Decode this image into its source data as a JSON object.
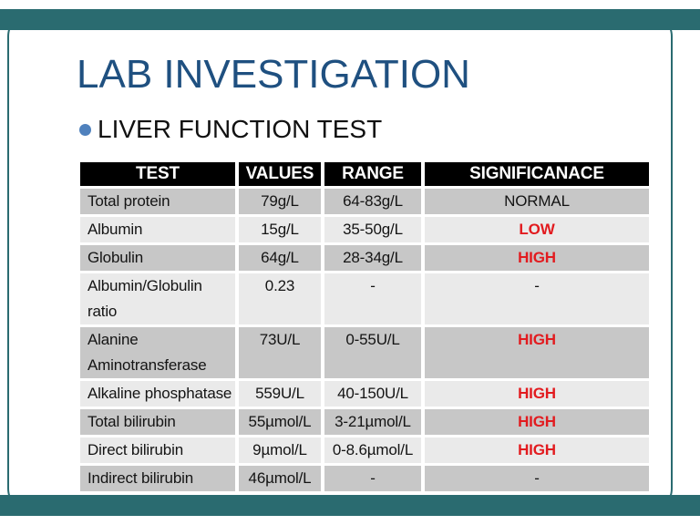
{
  "slide": {
    "title": "LAB INVESTIGATION",
    "bullet": "LIVER FUNCTION TEST"
  },
  "table": {
    "headers": [
      "TEST",
      "VALUES",
      "RANGE",
      "SIGNIFICANACE"
    ],
    "rows": [
      {
        "test": "Total protein",
        "value": "79g/L",
        "range": "64-83g/L",
        "significance": "NORMAL",
        "abnormal": false
      },
      {
        "test": "Albumin",
        "value": "15g/L",
        "range": "35-50g/L",
        "significance": "LOW",
        "abnormal": true
      },
      {
        "test": "Globulin",
        "value": "64g/L",
        "range": "28-34g/L",
        "significance": "HIGH",
        "abnormal": true
      },
      {
        "test": "Albumin/Globulin ratio",
        "value": "0.23",
        "range": "-",
        "significance": "-",
        "abnormal": false
      },
      {
        "test": "Alanine Aminotransferase",
        "value": "73U/L",
        "range": "0-55U/L",
        "significance": "HIGH",
        "abnormal": true
      },
      {
        "test": "Alkaline phosphatase",
        "value": "559U/L",
        "range": "40-150U/L",
        "significance": "HIGH",
        "abnormal": true
      },
      {
        "test": "Total bilirubin",
        "value": "55µmol/L",
        "range": "3-21µmol/L",
        "significance": "HIGH",
        "abnormal": true
      },
      {
        "test": "Direct bilirubin",
        "value": "9µmol/L",
        "range": "0-8.6µmol/L",
        "significance": "HIGH",
        "abnormal": true
      },
      {
        "test": "Indirect bilirubin",
        "value": "46µmol/L",
        "range": "-",
        "significance": "-",
        "abnormal": false
      }
    ]
  },
  "colors": {
    "teal": "#2A6B70",
    "navy": "#1F5080",
    "bullet_blue": "#4F81BD",
    "red": "#E21B1F",
    "header_bg": "#000000",
    "row_dark": "#C7C7C7",
    "row_light": "#EAEAEA"
  }
}
